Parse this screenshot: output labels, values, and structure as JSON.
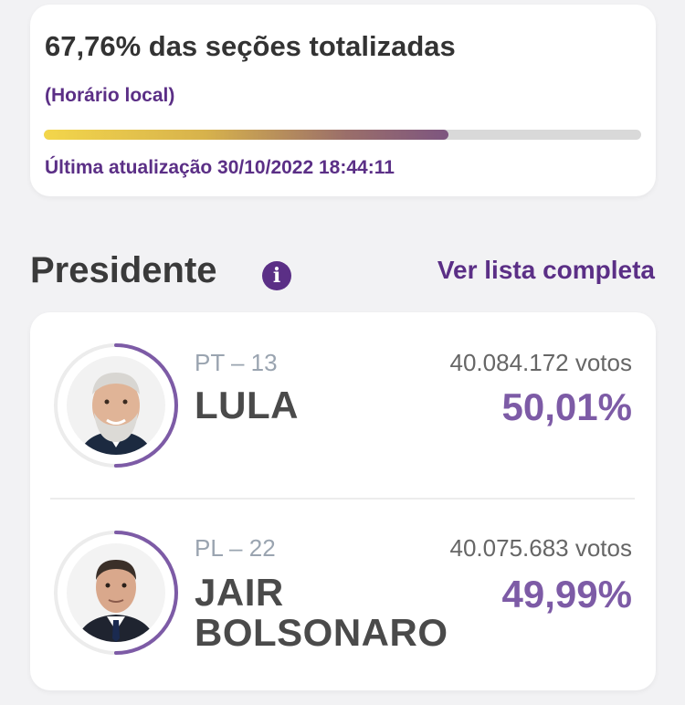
{
  "status": {
    "title": "67,76% das seções totalizadas",
    "subtitle": "(Horário local)",
    "progress_percent": 67.76,
    "updated": "Última atualização 30/10/2022 18:44:11"
  },
  "section": {
    "title": "Presidente",
    "info_icon_glyph": "i",
    "see_all": "Ver lista completa"
  },
  "candidates": [
    {
      "party": "PT – 13",
      "name_lines": [
        "LULA"
      ],
      "votes": "40.084.172 votos",
      "percent": "50,01%",
      "percent_value": 50.01
    },
    {
      "party": "PL – 22",
      "name_lines": [
        "JAIR",
        "BOLSONARO"
      ],
      "votes": "40.075.683 votos",
      "percent": "49,99%",
      "percent_value": 49.99
    }
  ],
  "colors": {
    "accent": "#5b2f86",
    "percent": "#7d5ba6",
    "ring": "#7d5ba6",
    "ring_track": "#ececec"
  }
}
